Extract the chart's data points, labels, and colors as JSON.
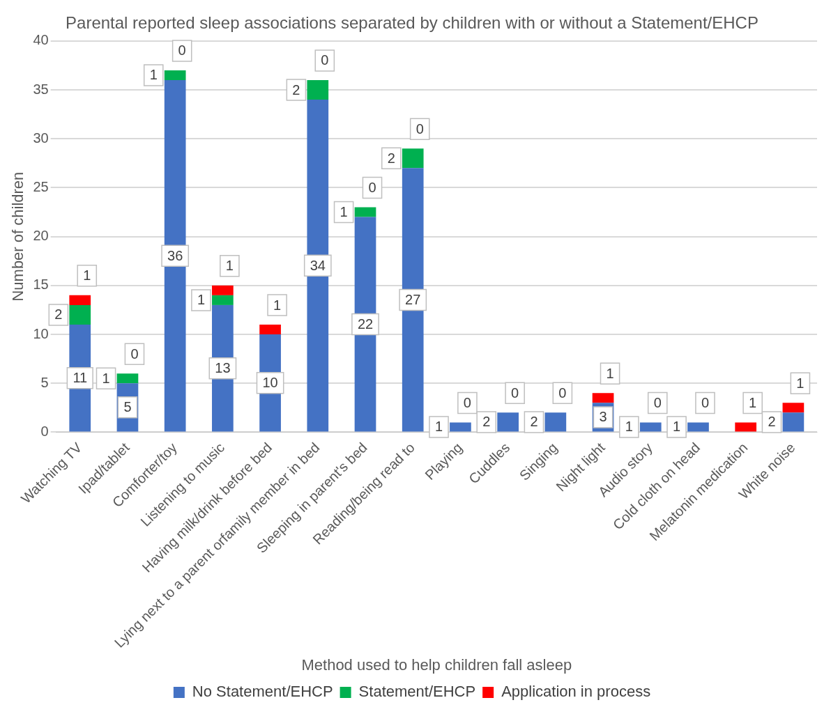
{
  "chart_data": {
    "type": "bar",
    "stacked": true,
    "title": "Parental reported sleep associations separated by children with or without a Statement/EHCP",
    "xlabel": "Method used to help children fall asleep",
    "ylabel": "Number of children",
    "categories": [
      "Watching TV",
      "Ipad/tablet",
      "Comforter/toy",
      "Listening to music",
      "Having milk/drink before bed",
      "Lying next to a parent orfamily member in bed",
      "Sleeping in parent's bed",
      "Reading/being read to",
      "Playing",
      "Cuddles",
      "Singing",
      "Night light",
      "Audio story",
      "Cold cloth on head",
      "Melatonin medication",
      "White noise"
    ],
    "series": [
      {
        "name": "No Statement/EHCP",
        "color": "#4472c4",
        "values": [
          11,
          5,
          36,
          13,
          10,
          34,
          22,
          27,
          1,
          2,
          2,
          3,
          1,
          1,
          0,
          2
        ],
        "value_labels": [
          "11",
          "5",
          "36",
          "13",
          "10",
          "34",
          "22",
          "27",
          "1",
          "2",
          "2",
          "3",
          "1",
          "1",
          null,
          "2"
        ]
      },
      {
        "name": "Statement/EHCP",
        "color": "#00b050",
        "values": [
          2,
          1,
          1,
          1,
          0,
          2,
          1,
          2,
          0,
          0,
          0,
          0,
          0,
          0,
          0,
          0
        ],
        "value_labels": [
          "2",
          "1",
          "1",
          "1",
          null,
          "2",
          "1",
          "2",
          null,
          null,
          null,
          null,
          null,
          null,
          null,
          null
        ]
      },
      {
        "name": "Application in process",
        "color": "#ff0000",
        "values": [
          1,
          0,
          0,
          1,
          1,
          0,
          0,
          0,
          0,
          0,
          0,
          1,
          0,
          0,
          1,
          1
        ],
        "value_labels": [
          "1",
          "0",
          "0",
          "1",
          "1",
          "0",
          "0",
          "0",
          "0",
          "0",
          "0",
          "1",
          "0",
          "0",
          "1",
          "1"
        ]
      }
    ],
    "ylim": [
      0,
      40
    ],
    "yticks": [
      0,
      5,
      10,
      15,
      20,
      25,
      30,
      35,
      40
    ],
    "grid": "y",
    "legend": "bottom"
  }
}
